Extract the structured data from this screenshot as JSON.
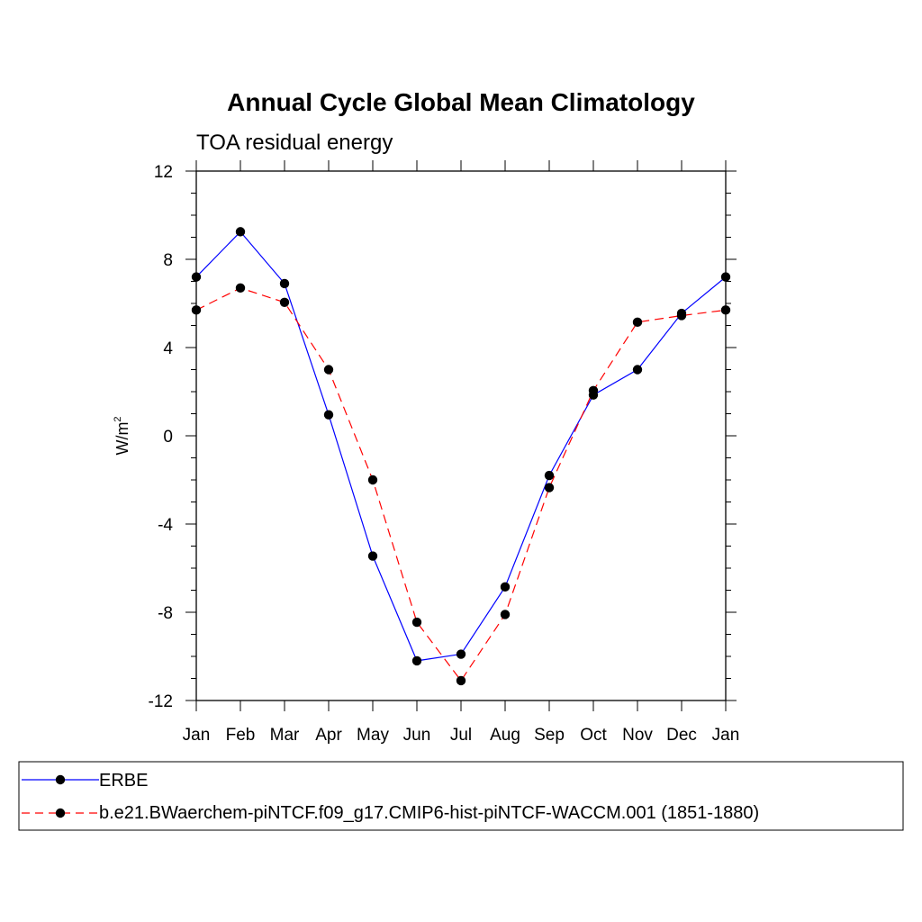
{
  "chart_data": {
    "type": "line",
    "title": "Annual Cycle Global Mean Climatology",
    "subtitle": "TOA residual energy",
    "xlabel": "",
    "ylabel": "W/m",
    "ylabel_superscript": "2",
    "categories": [
      "Jan",
      "Feb",
      "Mar",
      "Apr",
      "May",
      "Jun",
      "Jul",
      "Aug",
      "Sep",
      "Oct",
      "Nov",
      "Dec",
      "Jan"
    ],
    "ylim": [
      -12,
      12
    ],
    "yticks": [
      -12,
      -8,
      -4,
      0,
      4,
      8,
      12
    ],
    "ytick_labels": [
      "-12",
      "-8",
      "-4",
      "0",
      "4",
      "8",
      "12"
    ],
    "grid": false,
    "legend_position": "bottom",
    "series": [
      {
        "name": "ERBE",
        "color": "#0000ff",
        "dash": "solid",
        "marker": "filled-circle",
        "values": [
          7.2,
          9.25,
          6.9,
          0.95,
          -5.45,
          -10.2,
          -9.9,
          -6.85,
          -1.8,
          1.85,
          3.0,
          5.55,
          7.2
        ]
      },
      {
        "name": "b.e21.BWaerchem-piNTCF.f09_g17.CMIP6-hist-piNTCF-WACCM.001 (1851-1880)",
        "color": "#ff0000",
        "dash": "dashed",
        "marker": "filled-circle",
        "values": [
          5.7,
          6.7,
          6.05,
          3.0,
          -2.0,
          -8.45,
          -11.1,
          -8.1,
          -2.35,
          2.05,
          5.15,
          5.45,
          5.7
        ]
      }
    ]
  }
}
